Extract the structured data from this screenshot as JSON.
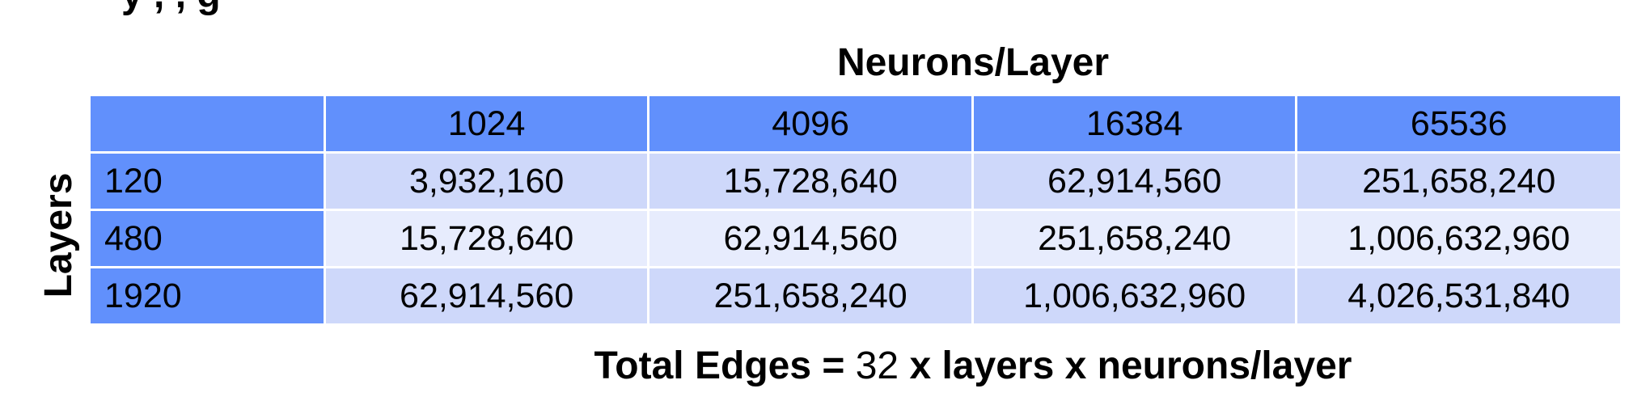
{
  "top_text_fragment": "y                                                        ,          ,     g",
  "column_title": "Neurons/Layer",
  "row_title": "Layers",
  "columns": [
    "1024",
    "4096",
    "16384",
    "65536"
  ],
  "rows": [
    {
      "layers": "120",
      "cells": [
        "3,932,160",
        "15,728,640",
        "62,914,560",
        "251,658,240"
      ]
    },
    {
      "layers": "480",
      "cells": [
        "15,728,640",
        "62,914,560",
        "251,658,240",
        "1,006,632,960"
      ]
    },
    {
      "layers": "1920",
      "cells": [
        "62,914,560",
        "251,658,240",
        "1,006,632,960",
        "4,026,531,840"
      ]
    }
  ],
  "formula": {
    "prefix": "Total Edges = ",
    "number": "32",
    "suffix": " x layers x neurons/layer"
  },
  "colors": {
    "header_blue": "#6190fc",
    "row_light": "#ced8fa",
    "row_lighter": "#e7ecfd"
  }
}
